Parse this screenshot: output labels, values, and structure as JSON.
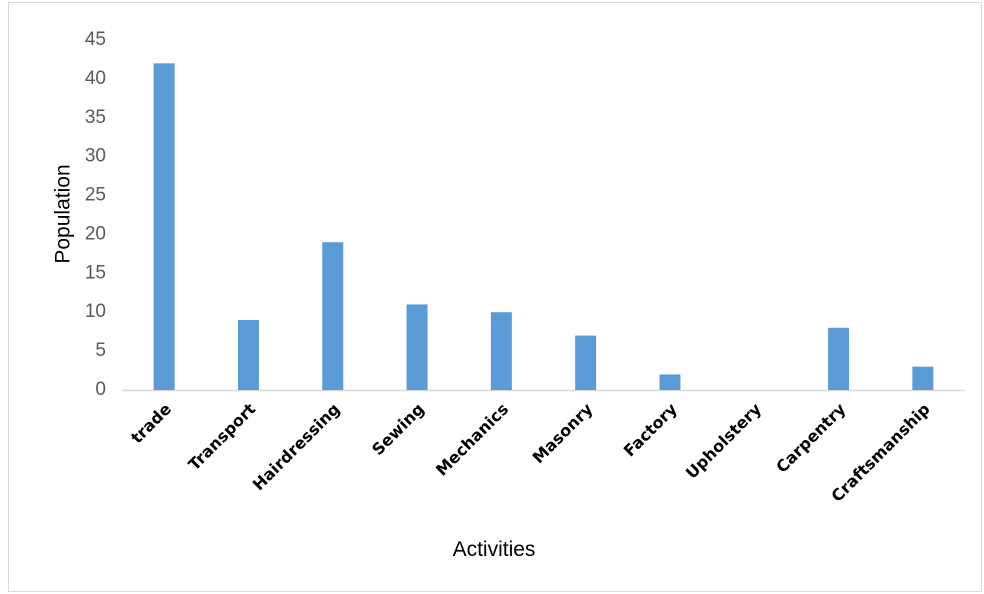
{
  "chart_data": {
    "type": "bar",
    "title": "",
    "xlabel": "Activities",
    "ylabel": "Population",
    "categories": [
      "trade",
      "Transport",
      "Hairdressing",
      "Sewing",
      "Mechanics",
      "Masonry",
      "Factory",
      "Upholstery",
      "Carpentry",
      "Craftsmanship"
    ],
    "values": [
      42,
      9,
      19,
      11,
      10,
      7,
      2,
      0,
      8,
      3
    ],
    "ylim": [
      0,
      45
    ],
    "yticks": [
      0,
      5,
      10,
      15,
      20,
      25,
      30,
      35,
      40,
      45
    ],
    "grid": false,
    "legend": "none",
    "bar_color": "#5b9bd5",
    "axis_color": "#d9d9d9"
  }
}
